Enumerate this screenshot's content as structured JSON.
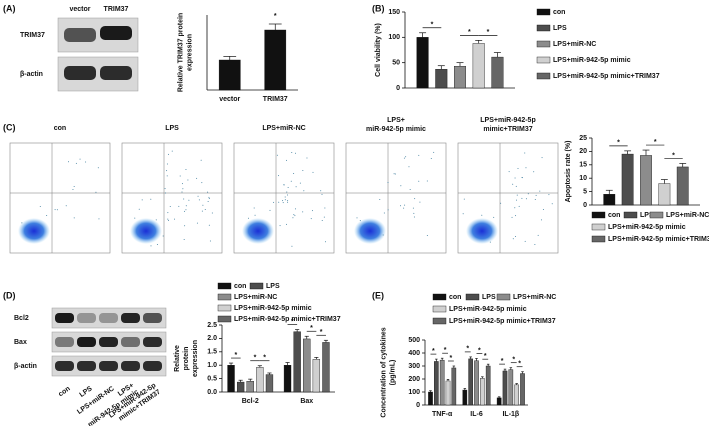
{
  "panel_labels": [
    "(A)",
    "(B)",
    "(C)",
    "(D)",
    "(E)"
  ],
  "blots": {
    "A": {
      "rows": [
        "TRIM37",
        "β-actin"
      ],
      "lanes": [
        "vector",
        "TRIM37"
      ]
    },
    "D": {
      "rows": [
        "Bcl2",
        "Bax",
        "β-actin"
      ],
      "lanes": [
        [
          "con"
        ],
        [
          "LPS"
        ],
        [
          "LPS+miR-NC"
        ],
        [
          "LPS+",
          "miR-942-5p mimic"
        ],
        [
          "LPS+miR-942-5p",
          "mimic+TRIM37"
        ]
      ]
    }
  },
  "flow": {
    "titles": [
      [
        "con"
      ],
      [
        "LPS"
      ],
      [
        "LPS+miR-NC"
      ],
      [
        "LPS+",
        "miR-942-5p mimic"
      ],
      [
        "LPS+miR-942-5p",
        "mimic+TRIM37"
      ]
    ]
  },
  "chart_data": [
    {
      "type": "bar",
      "ylabel": [
        "Relative TRIM37 protein",
        "expression"
      ],
      "categories": [
        "vector",
        "TRIM37"
      ],
      "ylim": [
        0,
        2.5
      ],
      "series": [
        {
          "color": "#111111",
          "values": [
            1.0,
            2.0
          ],
          "errors": [
            0.12,
            0.2
          ]
        }
      ],
      "annotations": [
        {
          "text": "*",
          "group": 1,
          "from": 0,
          "to": 0
        }
      ]
    },
    {
      "type": "bar",
      "ylabel": [
        "Cell viability (%)"
      ],
      "categories": [
        null
      ],
      "ylim": [
        0,
        150
      ],
      "yticks": [
        0,
        50,
        100,
        150
      ],
      "legend": "right",
      "series": [
        {
          "name": "con",
          "color": "#111111",
          "values": [
            100
          ],
          "errors": [
            9
          ]
        },
        {
          "name": "LPS",
          "color": "#4d4d4d",
          "values": [
            37
          ],
          "errors": [
            7
          ]
        },
        {
          "name": "LPS+miR-NC",
          "color": "#8c8c8c",
          "values": [
            43
          ],
          "errors": [
            7
          ]
        },
        {
          "name": "LPS+miR-942-5p mimic",
          "color": "#d0d0d0",
          "values": [
            88
          ],
          "errors": [
            6
          ]
        },
        {
          "name": "LPS+miR-942-5p mimic+TRIM37",
          "color": "#666666",
          "values": [
            61
          ],
          "errors": [
            9
          ]
        }
      ],
      "annotations": [
        {
          "text": "*",
          "group": 0,
          "from": 0,
          "to": 1
        },
        {
          "text": "*",
          "group": 0,
          "from": 2,
          "to": 3
        },
        {
          "text": "*",
          "group": 0,
          "from": 3,
          "to": 4
        }
      ]
    },
    {
      "type": "bar",
      "ylabel": [
        "Apoptosis rate (%)"
      ],
      "categories": [
        null
      ],
      "ylim": [
        0,
        25
      ],
      "yticks": [
        0,
        5,
        10,
        15,
        20,
        25
      ],
      "legend": "bottom",
      "series": [
        {
          "name": "con",
          "color": "#111111",
          "values": [
            4
          ],
          "errors": [
            1.5
          ]
        },
        {
          "name": "LPS",
          "color": "#4d4d4d",
          "values": [
            19
          ],
          "errors": [
            1.2
          ]
        },
        {
          "name": "LPS+miR-NC",
          "color": "#8c8c8c",
          "values": [
            18.5
          ],
          "errors": [
            2
          ]
        },
        {
          "name": "LPS+miR-942-5p mimic",
          "color": "#d0d0d0",
          "values": [
            8
          ],
          "errors": [
            1.5
          ]
        },
        {
          "name": "LPS+miR-942-5p mimic+TRIM37",
          "color": "#666666",
          "values": [
            14.2
          ],
          "errors": [
            1.3
          ]
        }
      ],
      "annotations": [
        {
          "text": "*",
          "group": 0,
          "from": 0,
          "to": 1
        },
        {
          "text": "*",
          "group": 0,
          "from": 2,
          "to": 3
        },
        {
          "text": "*",
          "group": 0,
          "from": 3,
          "to": 4
        }
      ]
    },
    {
      "type": "bar",
      "ylabel": [
        "Relative",
        "protein",
        "expression"
      ],
      "categories": [
        "Bcl-2",
        "Bax"
      ],
      "ylim": [
        0,
        2.5
      ],
      "yticks": [
        {
          "value": 0,
          "label": "0.0"
        },
        {
          "value": 0.5,
          "label": "0.5"
        },
        {
          "value": 1,
          "label": "1.0"
        },
        {
          "value": 1.5,
          "label": "1.5"
        },
        {
          "value": 2,
          "label": "2.0"
        },
        {
          "value": 2.5,
          "label": "2.5"
        }
      ],
      "legend": "top",
      "series": [
        {
          "name": "con",
          "color": "#111111",
          "values": [
            1.0,
            1.0
          ],
          "errors": [
            0.08,
            0.1
          ]
        },
        {
          "name": "LPS",
          "color": "#4d4d4d",
          "values": [
            0.37,
            2.25
          ],
          "errors": [
            0.07,
            0.08
          ]
        },
        {
          "name": "LPS+miR-NC",
          "color": "#8c8c8c",
          "values": [
            0.4,
            1.98
          ],
          "errors": [
            0.08,
            0.1
          ]
        },
        {
          "name": "LPS+miR-942-5p mimic",
          "color": "#d0d0d0",
          "values": [
            0.92,
            1.22
          ],
          "errors": [
            0.06,
            0.07
          ]
        },
        {
          "name": "LPS+miR-942-5p mimic+TRIM37",
          "color": "#666666",
          "values": [
            0.65,
            1.85
          ],
          "errors": [
            0.06,
            0.08
          ]
        }
      ],
      "annotations": [
        {
          "text": "*",
          "group": 0,
          "from": 0,
          "to": 1
        },
        {
          "text": "*",
          "group": 0,
          "from": 2,
          "to": 3
        },
        {
          "text": "*",
          "group": 0,
          "from": 3,
          "to": 4
        },
        {
          "text": "*",
          "group": 1,
          "from": 0,
          "to": 1
        },
        {
          "text": "*",
          "group": 1,
          "from": 2,
          "to": 3
        },
        {
          "text": "*",
          "group": 1,
          "from": 3,
          "to": 4
        }
      ]
    },
    {
      "type": "bar",
      "ylabel": [
        "Concentration of cytokines",
        "(pg/mL)"
      ],
      "categories": [
        "TNF-α",
        "IL-6",
        "IL-1β"
      ],
      "ylim": [
        0,
        500
      ],
      "yticks": [
        0,
        100,
        200,
        300,
        400,
        500
      ],
      "legend": "top",
      "series": [
        {
          "name": "con",
          "color": "#111111",
          "values": [
            100,
            115,
            55
          ],
          "errors": [
            10,
            12,
            8
          ]
        },
        {
          "name": "LPS",
          "color": "#4d4d4d",
          "values": [
            335,
            355,
            262
          ],
          "errors": [
            18,
            15,
            14
          ]
        },
        {
          "name": "LPS+miR-NC",
          "color": "#8c8c8c",
          "values": [
            345,
            340,
            272
          ],
          "errors": [
            15,
            18,
            15
          ]
        },
        {
          "name": "LPS+miR-942-5p mimic",
          "color": "#d0d0d0",
          "values": [
            185,
            205,
            155
          ],
          "errors": [
            12,
            12,
            10
          ]
        },
        {
          "name": "LPS+miR-942-5p mimic+TRIM37",
          "color": "#666666",
          "values": [
            285,
            300,
            242
          ],
          "errors": [
            15,
            14,
            14
          ]
        }
      ],
      "annotations": [
        {
          "text": "*",
          "group": 0,
          "from": 0,
          "to": 1
        },
        {
          "text": "*",
          "group": 0,
          "from": 2,
          "to": 3
        },
        {
          "text": "*",
          "group": 0,
          "from": 3,
          "to": 4
        },
        {
          "text": "*",
          "group": 1,
          "from": 0,
          "to": 1
        },
        {
          "text": "*",
          "group": 1,
          "from": 2,
          "to": 3
        },
        {
          "text": "*",
          "group": 1,
          "from": 3,
          "to": 4
        },
        {
          "text": "*",
          "group": 2,
          "from": 0,
          "to": 1
        },
        {
          "text": "*",
          "group": 2,
          "from": 2,
          "to": 3
        },
        {
          "text": "*",
          "group": 2,
          "from": 3,
          "to": 4
        }
      ]
    }
  ]
}
